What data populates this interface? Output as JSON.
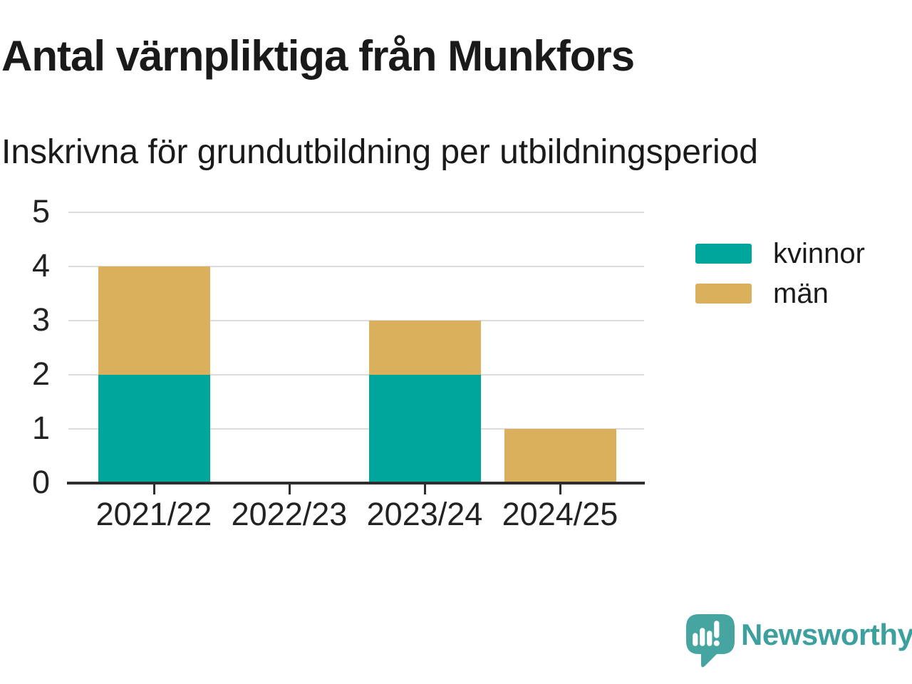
{
  "chart_data": {
    "type": "bar",
    "stacked": true,
    "title": "Antal värnpliktiga från Munkfors",
    "subtitle": "Inskrivna för grundutbildning per utbildningsperiod",
    "categories": [
      "2021/22",
      "2022/23",
      "2023/24",
      "2024/25"
    ],
    "series": [
      {
        "name": "kvinnor",
        "color": "#00a59b",
        "values": [
          2,
          0,
          2,
          0
        ]
      },
      {
        "name": "män",
        "color": "#dab05c",
        "values": [
          2,
          0,
          1,
          1
        ]
      }
    ],
    "ylim": [
      0,
      5
    ],
    "yticks": [
      0,
      1,
      2,
      3,
      4,
      5
    ],
    "grid": true,
    "legend_position": "right",
    "xlabel": "",
    "ylabel": ""
  },
  "colors": {
    "grid": "#dddddd",
    "axis": "#2e2e2e",
    "text": "#1a1a1a"
  },
  "branding": {
    "logo_text": "Newsworthy",
    "logo_color": "#3da09e"
  }
}
